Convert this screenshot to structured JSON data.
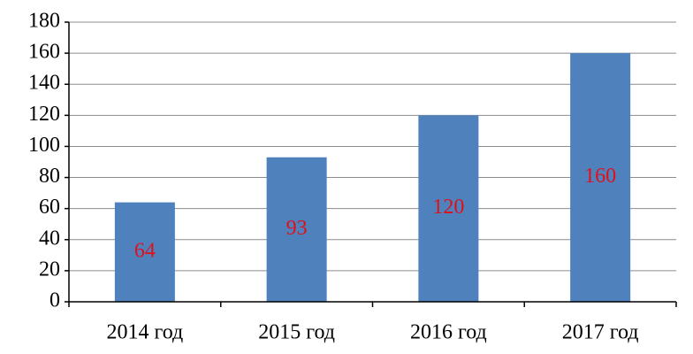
{
  "chart_data": {
    "type": "bar",
    "categories": [
      "2014 год",
      "2015 год",
      "2016 год",
      "2017 год"
    ],
    "values": [
      64,
      93,
      120,
      160
    ],
    "color": "#4f81bd",
    "label_color": "#e0101a",
    "ylim": [
      0,
      180
    ],
    "yticks": [
      0,
      20,
      40,
      60,
      80,
      100,
      120,
      140,
      160,
      180
    ],
    "grid": true
  }
}
